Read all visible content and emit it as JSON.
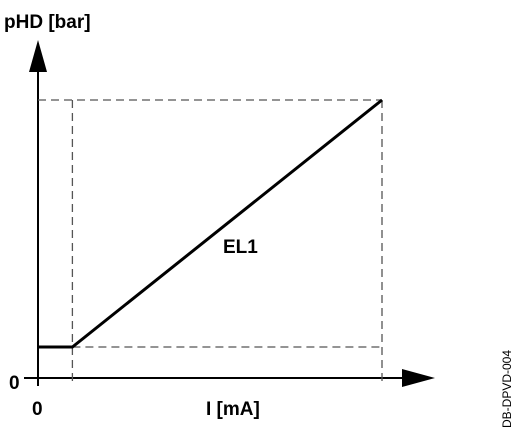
{
  "chart_data": {
    "type": "line",
    "ylabel": "pHD [bar]",
    "xlabel": "I [mA]",
    "x_origin_label": "0",
    "y_origin_label": "0",
    "series": [
      {
        "name": "EL1",
        "points": [
          {
            "x": 0.0,
            "y": 0.0
          },
          {
            "x": 0.1,
            "y": 0.0
          },
          {
            "x": 1.0,
            "y": 1.0
          }
        ]
      }
    ],
    "guides": {
      "x_start": 0.1,
      "x_end": 1.0,
      "y_min": 0.0,
      "y_max": 1.0
    },
    "legend": "none",
    "grid": false
  },
  "side_label": "DB-DPVD-004",
  "colors": {
    "line": "#000000",
    "axis": "#000000",
    "guide": "#555555"
  }
}
